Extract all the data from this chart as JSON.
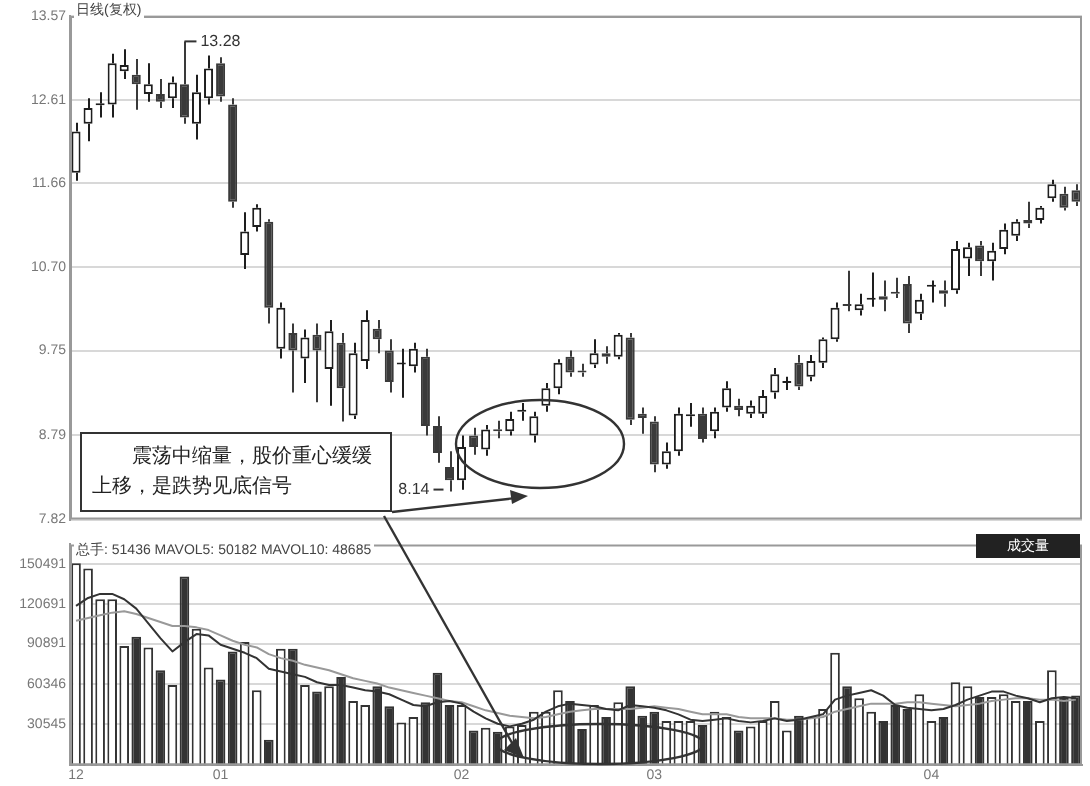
{
  "chart_data": [
    {
      "type": "candlestick",
      "tick_labels": "y",
      "grid": "y",
      "categories": [
        "12",
        null,
        null,
        null,
        null,
        null,
        null,
        null,
        null,
        null,
        null,
        null,
        "01",
        null,
        null,
        null,
        null,
        null,
        null,
        null,
        null,
        null,
        null,
        null,
        null,
        null,
        null,
        null,
        null,
        null,
        null,
        null,
        "02",
        null,
        null,
        null,
        null,
        null,
        null,
        null,
        null,
        null,
        null,
        null,
        null,
        null,
        null,
        null,
        "03",
        null,
        null,
        null,
        null,
        null,
        null,
        null,
        null,
        null,
        null,
        null,
        null,
        null,
        null,
        null,
        null,
        null,
        null,
        null,
        null,
        null,
        null,
        "04",
        null,
        null,
        null,
        null,
        null,
        null,
        null,
        null,
        null,
        null,
        null,
        null
      ],
      "ohlc": [
        [
          11.78,
          12.35,
          11.69,
          12.25
        ],
        [
          12.34,
          12.63,
          12.14,
          12.52
        ],
        [
          12.55,
          12.7,
          12.41,
          12.57
        ],
        [
          12.56,
          13.14,
          12.41,
          13.03
        ],
        [
          12.94,
          13.19,
          12.85,
          13.01
        ],
        [
          12.9,
          13.08,
          12.5,
          12.79
        ],
        [
          12.68,
          13.03,
          12.59,
          12.79
        ],
        [
          12.68,
          12.85,
          12.52,
          12.59
        ],
        [
          12.63,
          12.88,
          12.52,
          12.81
        ],
        [
          12.79,
          13.28,
          12.34,
          12.41
        ],
        [
          12.34,
          12.9,
          12.16,
          12.7
        ],
        [
          12.63,
          13.12,
          12.56,
          12.97
        ],
        [
          13.03,
          13.1,
          12.59,
          12.65
        ],
        [
          12.56,
          12.63,
          11.38,
          11.45
        ],
        [
          10.84,
          11.33,
          10.68,
          11.11
        ],
        [
          11.16,
          11.42,
          11.11,
          11.38
        ],
        [
          11.22,
          11.25,
          10.06,
          10.24
        ],
        [
          9.77,
          10.3,
          9.66,
          10.24
        ],
        [
          9.95,
          10.06,
          9.27,
          9.75
        ],
        [
          9.66,
          9.99,
          9.38,
          9.9
        ],
        [
          9.93,
          10.06,
          9.16,
          9.75
        ],
        [
          9.54,
          10.1,
          9.12,
          9.97
        ],
        [
          9.84,
          9.95,
          8.94,
          9.32
        ],
        [
          9.01,
          9.84,
          8.97,
          9.72
        ],
        [
          9.63,
          10.21,
          9.54,
          10.1
        ],
        [
          10,
          10.1,
          9.72,
          9.88
        ],
        [
          9.75,
          9.88,
          9.27,
          9.39
        ],
        [
          9.59,
          9.77,
          9.21,
          9.59
        ],
        [
          9.57,
          9.84,
          9.5,
          9.77
        ],
        [
          9.68,
          9.77,
          8.78,
          8.89
        ],
        [
          8.89,
          9,
          8.47,
          8.58
        ],
        [
          8.42,
          8.6,
          8.14,
          8.27
        ],
        [
          8.27,
          8.78,
          8.16,
          8.65
        ],
        [
          8.78,
          8.87,
          8.56,
          8.65
        ],
        [
          8.62,
          8.9,
          8.55,
          8.85
        ],
        [
          8.85,
          8.95,
          8.75,
          8.83
        ],
        [
          8.83,
          9.05,
          8.78,
          8.97
        ],
        [
          9.05,
          9.15,
          8.95,
          9.07
        ],
        [
          8.78,
          9.05,
          8.7,
          9
        ],
        [
          9.12,
          9.38,
          9.05,
          9.32
        ],
        [
          9.32,
          9.65,
          9.25,
          9.61
        ],
        [
          9.68,
          9.75,
          9.45,
          9.5
        ],
        [
          9.52,
          9.6,
          9.45,
          9.5
        ],
        [
          9.59,
          9.88,
          9.55,
          9.72
        ],
        [
          9.72,
          9.8,
          9.6,
          9.68
        ],
        [
          9.68,
          9.95,
          9.65,
          9.93
        ],
        [
          9.9,
          9.95,
          8.9,
          8.96
        ],
        [
          9.03,
          9.1,
          8.8,
          8.98
        ],
        [
          8.94,
          9,
          8.36,
          8.45
        ],
        [
          8.45,
          8.7,
          8.4,
          8.6
        ],
        [
          8.6,
          9.1,
          8.55,
          9.03
        ],
        [
          9,
          9.15,
          8.88,
          9.02
        ],
        [
          9.03,
          9.1,
          8.7,
          8.74
        ],
        [
          8.83,
          9.1,
          8.75,
          9.05
        ],
        [
          9.1,
          9.4,
          9.05,
          9.32
        ],
        [
          9.12,
          9.2,
          9,
          9.07
        ],
        [
          9.03,
          9.18,
          8.98,
          9.12
        ],
        [
          9.03,
          9.3,
          8.98,
          9.23
        ],
        [
          9.27,
          9.55,
          9.2,
          9.48
        ],
        [
          9.38,
          9.45,
          9.3,
          9.38
        ],
        [
          9.61,
          9.7,
          9.3,
          9.34
        ],
        [
          9.45,
          9.7,
          9.4,
          9.63
        ],
        [
          9.61,
          9.9,
          9.55,
          9.88
        ],
        [
          9.88,
          10.3,
          9.85,
          10.24
        ],
        [
          10.28,
          10.66,
          10.2,
          10.26
        ],
        [
          10.21,
          10.4,
          10.15,
          10.28
        ],
        [
          10.33,
          10.64,
          10.25,
          10.33
        ],
        [
          10.37,
          10.55,
          10.2,
          10.33
        ],
        [
          10.42,
          10.58,
          10.35,
          10.4
        ],
        [
          10.51,
          10.6,
          9.95,
          10.06
        ],
        [
          10.17,
          10.4,
          10.1,
          10.33
        ],
        [
          10.48,
          10.55,
          10.3,
          10.48
        ],
        [
          10.44,
          10.55,
          10.25,
          10.4
        ],
        [
          10.44,
          11,
          10.4,
          10.91
        ],
        [
          10.8,
          10.98,
          10.6,
          10.93
        ],
        [
          10.95,
          11,
          10.6,
          10.77
        ],
        [
          10.77,
          10.98,
          10.55,
          10.89
        ],
        [
          10.91,
          11.2,
          10.85,
          11.13
        ],
        [
          11.06,
          11.25,
          11,
          11.22
        ],
        [
          11.24,
          11.45,
          11.15,
          11.2
        ],
        [
          11.24,
          11.4,
          11.2,
          11.38
        ],
        [
          11.49,
          11.7,
          11.45,
          11.65
        ],
        [
          11.54,
          11.62,
          11.35,
          11.38
        ],
        [
          11.58,
          11.65,
          11.4,
          11.45
        ]
      ],
      "ylim": [
        7.82,
        13.57
      ],
      "yticks": [
        13.57,
        12.61,
        11.66,
        {
          "value": 10.7,
          "label": "10.70"
        },
        9.75,
        8.79,
        7.82
      ],
      "annotations": [
        "日线(复权)",
        "震荡中缩量，股价重心缓缓上移，是跌势见底信号",
        "13.28",
        "8.14"
      ]
    },
    {
      "type": "bar",
      "grid": "y",
      "categories": [
        "12",
        null,
        null,
        null,
        null,
        null,
        null,
        null,
        null,
        null,
        null,
        null,
        "01",
        null,
        null,
        null,
        null,
        null,
        null,
        null,
        null,
        null,
        null,
        null,
        null,
        null,
        null,
        null,
        null,
        null,
        null,
        null,
        "02",
        null,
        null,
        null,
        null,
        null,
        null,
        null,
        null,
        null,
        null,
        null,
        null,
        null,
        null,
        null,
        "03",
        null,
        null,
        null,
        null,
        null,
        null,
        null,
        null,
        null,
        null,
        null,
        null,
        null,
        null,
        null,
        null,
        null,
        null,
        null,
        null,
        null,
        null,
        "04",
        null,
        null,
        null,
        null,
        null,
        null,
        null,
        null,
        null,
        null,
        null,
        null
      ],
      "series": [
        {
          "type": "bar",
          "values": [
            151000,
            147000,
            124000,
            124000,
            89000,
            96000,
            88000,
            71000,
            60000,
            141000,
            102000,
            73000,
            64000,
            85000,
            92000,
            56000,
            19000,
            87000,
            87000,
            60000,
            55000,
            59000,
            66000,
            48000,
            45000,
            59000,
            44000,
            32000,
            36000,
            47000,
            69000,
            45000,
            45000,
            26000,
            28000,
            25000,
            29000,
            30000,
            40000,
            40000,
            56000,
            48000,
            27000,
            45000,
            36000,
            47000,
            59000,
            37000,
            40000,
            33000,
            33000,
            33000,
            30000,
            40000,
            36000,
            26000,
            29000,
            33000,
            48000,
            26000,
            37000,
            36000,
            42000,
            84000,
            59000,
            50000,
            40000,
            33000,
            45000,
            42000,
            53000,
            33000,
            36000,
            62000,
            59000,
            51000,
            51000,
            53000,
            48000,
            48000,
            33000,
            71000,
            51000,
            52000
          ],
          "colors": [
            "#ffffff",
            "#ffffff",
            "#ffffff",
            "#ffffff",
            "#ffffff",
            "#333333",
            "#ffffff",
            "#333333",
            "#ffffff",
            "#333333",
            "#ffffff",
            "#ffffff",
            "#333333",
            "#333333",
            "#ffffff",
            "#ffffff",
            "#333333",
            "#ffffff",
            "#333333",
            "#ffffff",
            "#333333",
            "#ffffff",
            "#333333",
            "#ffffff",
            "#ffffff",
            "#333333",
            "#333333",
            "#ffffff",
            "#ffffff",
            "#333333",
            "#333333",
            "#333333",
            "#ffffff",
            "#333333",
            "#ffffff",
            "#333333",
            "#ffffff",
            "#ffffff",
            "#ffffff",
            "#ffffff",
            "#ffffff",
            "#333333",
            "#333333",
            "#ffffff",
            "#333333",
            "#ffffff",
            "#333333",
            "#333333",
            "#333333",
            "#ffffff",
            "#ffffff",
            "#ffffff",
            "#333333",
            "#ffffff",
            "#ffffff",
            "#333333",
            "#ffffff",
            "#ffffff",
            "#ffffff",
            "#ffffff",
            "#333333",
            "#ffffff",
            "#ffffff",
            "#ffffff",
            "#333333",
            "#ffffff",
            "#ffffff",
            "#333333",
            "#333333",
            "#333333",
            "#ffffff",
            "#ffffff",
            "#333333",
            "#ffffff",
            "#ffffff",
            "#333333",
            "#ffffff",
            "#ffffff",
            "#ffffff",
            "#333333",
            "#ffffff",
            "#ffffff",
            "#333333",
            "#333333"
          ]
        },
        {
          "type": "line",
          "color": "#333333",
          "values": [
            119000,
            125000,
            128000,
            128000,
            124000,
            117000,
            106000,
            95000,
            85000,
            92000,
            98000,
            97000,
            90000,
            87000,
            84000,
            80000,
            72000,
            70000,
            68000,
            66000,
            62000,
            60000,
            60000,
            58000,
            56000,
            55000,
            53000,
            49000,
            45000,
            44000,
            47000,
            48000,
            46000,
            40000,
            35000,
            31000,
            29000,
            31000,
            34000,
            40000,
            44000,
            46000,
            45000,
            44000,
            42000,
            41000,
            45000,
            44000,
            43000,
            41000,
            38000,
            34000,
            33000,
            34000,
            35000,
            33000,
            32000,
            33000,
            35000,
            33000,
            34000,
            36000,
            38000,
            49000,
            52000,
            54000,
            56000,
            52000,
            45000,
            43000,
            42000,
            41000,
            42000,
            45000,
            49000,
            52000,
            55000,
            55000,
            52000,
            50000,
            47000,
            50000,
            51000,
            50000
          ]
        },
        {
          "type": "line",
          "color": "#999999",
          "values": [
            108000,
            110000,
            112000,
            114000,
            115000,
            113000,
            110000,
            107000,
            104000,
            104000,
            103000,
            101000,
            97000,
            93000,
            90000,
            88000,
            83000,
            80000,
            78000,
            75000,
            73000,
            71000,
            68000,
            65000,
            63000,
            61000,
            58000,
            56000,
            54000,
            52000,
            50000,
            48000,
            47000,
            44000,
            41000,
            39000,
            37000,
            36000,
            35000,
            36000,
            38000,
            40000,
            41000,
            42000,
            42000,
            42000,
            42000,
            43000,
            44000,
            43000,
            42000,
            40000,
            38000,
            38000,
            38000,
            36000,
            35000,
            35000,
            35000,
            34000,
            34000,
            35000,
            36000,
            40000,
            42000,
            44000,
            46000,
            46000,
            46000,
            47000,
            47000,
            46000,
            45000,
            44000,
            45000,
            46000,
            48000,
            49000,
            50000,
            50000,
            49000,
            49000,
            48000,
            49000
          ]
        }
      ],
      "ylim": [
        0,
        165000
      ],
      "yticks": [
        150491,
        120691,
        90891,
        60346,
        30545
      ],
      "annotations": [
        "总手: 51436 MAVOL5: 50182 MAVOL10: 48685",
        "成交量"
      ]
    }
  ]
}
